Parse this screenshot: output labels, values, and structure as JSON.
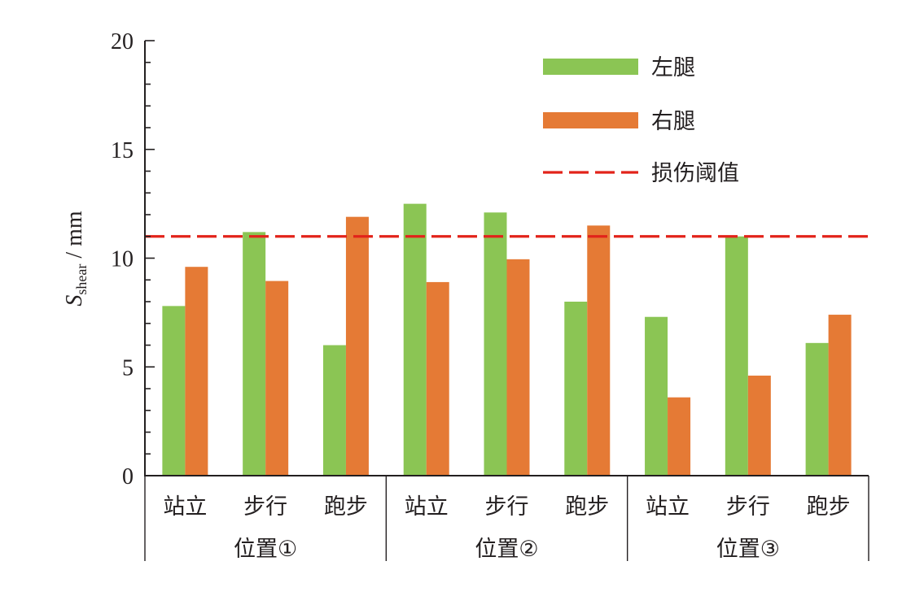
{
  "chart_data": {
    "type": "bar",
    "ylabel_symbol": "S",
    "ylabel_subscript": "shear",
    "ylabel_unit": " / mm",
    "ylim": [
      0,
      20
    ],
    "yticks": [
      0,
      5,
      10,
      15,
      20
    ],
    "ytick_labels": [
      "0",
      "5",
      "10",
      "15",
      "20"
    ],
    "groups": [
      "位置①",
      "位置②",
      "位置③"
    ],
    "categories": [
      "站立",
      "步行",
      "跑步",
      "站立",
      "步行",
      "跑步",
      "站立",
      "步行",
      "跑步"
    ],
    "series": [
      {
        "name": "左腿",
        "color": "#8bc554",
        "values": [
          7.8,
          11.2,
          6.0,
          12.5,
          12.1,
          8.0,
          7.3,
          11.0,
          6.1
        ]
      },
      {
        "name": "右腿",
        "color": "#e57a35",
        "values": [
          9.6,
          8.95,
          11.9,
          8.9,
          9.95,
          11.5,
          3.6,
          4.6,
          7.4
        ]
      }
    ],
    "threshold": {
      "name": "损伤阈值",
      "value": 11.0,
      "color": "#e2231a",
      "style": "dashed"
    },
    "legend_position": "top-right",
    "grid": false
  }
}
